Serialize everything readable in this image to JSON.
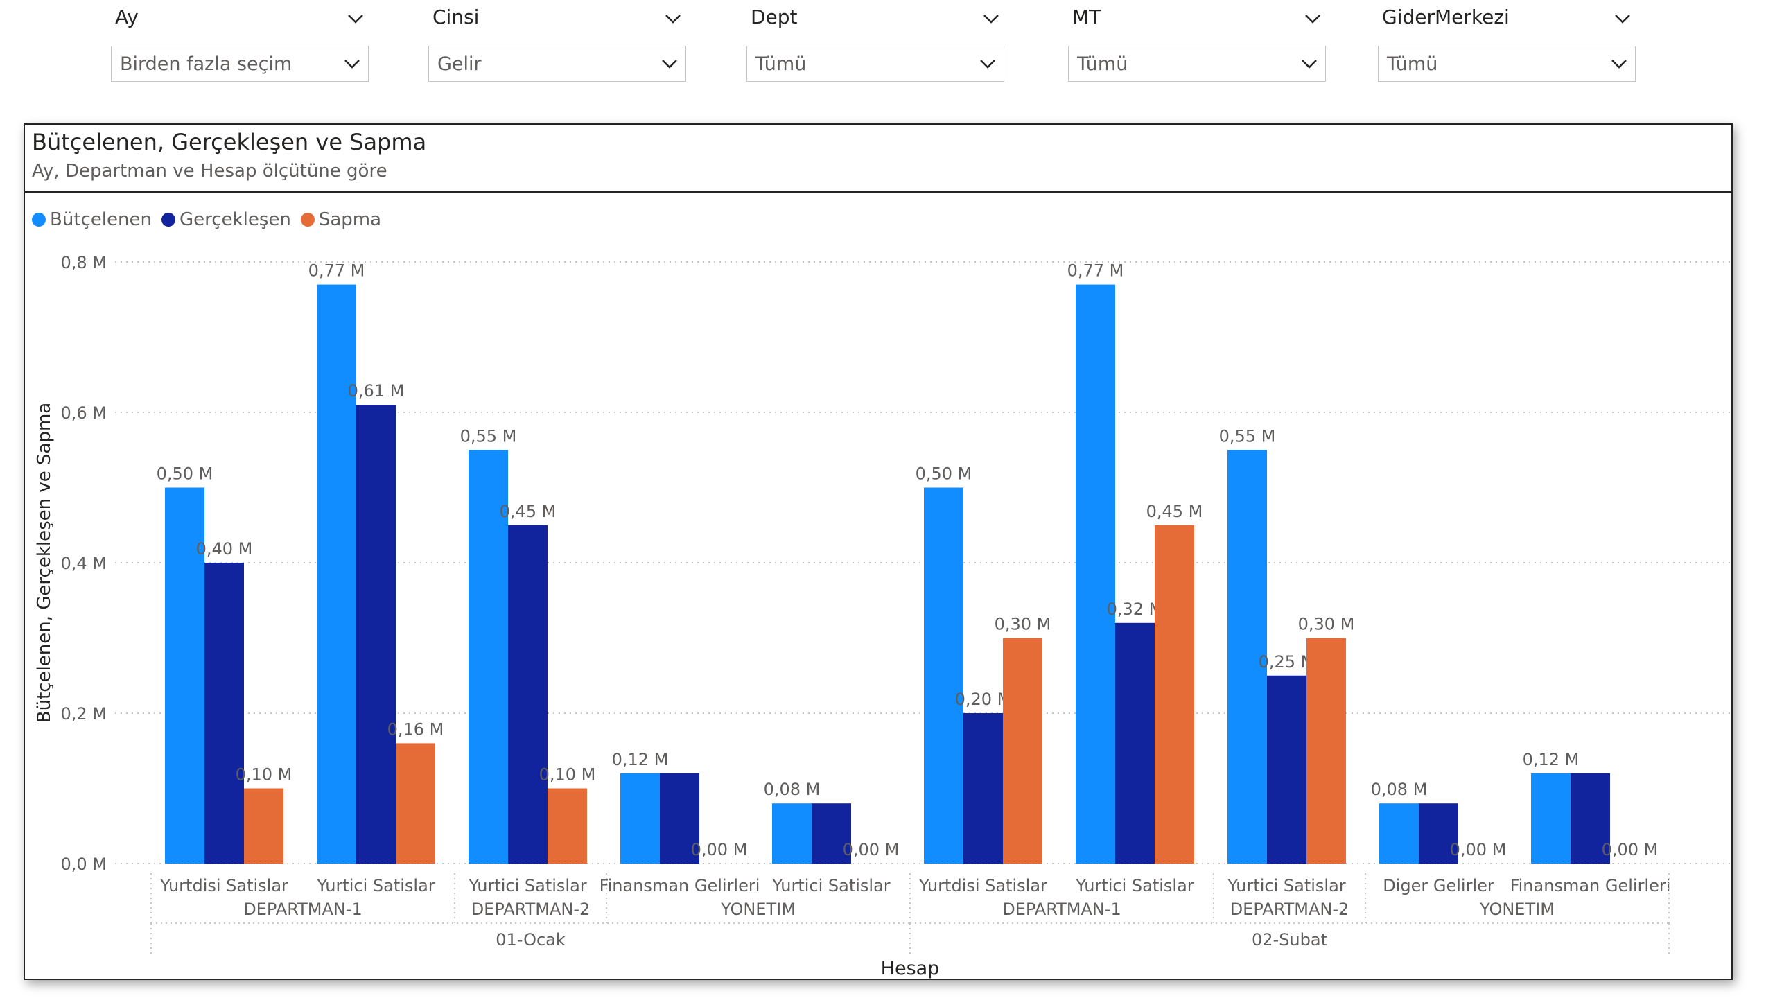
{
  "slicers": [
    {
      "title": "Ay",
      "value": "Birden fazla seçim"
    },
    {
      "title": "Cinsi",
      "value": "Gelir"
    },
    {
      "title": "Dept",
      "value": "Tümü"
    },
    {
      "title": "MT",
      "value": "Tümü"
    },
    {
      "title": "GiderMerkezi",
      "value": "Tümü"
    }
  ],
  "visual": {
    "title": "Bütçelenen, Gerçekleşen ve Sapma",
    "subtitle": "Ay, Departman ve Hesap ölçütüne göre"
  },
  "colors": {
    "Bütçelenen": "#118DFF",
    "Gerçekleşen": "#12239E",
    "Sapma": "#E66C37",
    "grid": "#c8c6c4",
    "axis_text": "#605e5c"
  },
  "chart_data": {
    "type": "bar",
    "title": "Bütçelenen, Gerçekleşen ve Sapma",
    "subtitle": "Ay, Departman ve Hesap ölçütüne göre",
    "xlabel": "Hesap",
    "ylabel": "Bütçelenen, Gerçekleşen ve Sapma",
    "ylim": [
      0,
      0.8
    ],
    "yticks": [
      0,
      0.2,
      0.4,
      0.6,
      0.8
    ],
    "ytick_labels": [
      "0,0 M",
      "0,2 M",
      "0,4 M",
      "0,6 M",
      "0,8 M"
    ],
    "grid": true,
    "legend_position": "top-left",
    "legend": [
      "Bütçelenen",
      "Gerçekleşen",
      "Sapma"
    ],
    "months": [
      {
        "label": "01-Ocak",
        "departments": [
          {
            "label": "DEPARTMAN-1",
            "accounts": [
              {
                "label": "Yurtdisi Satislar",
                "values": [
                  0.5,
                  0.4,
                  0.1
                ],
                "value_labels": [
                  "0,50 M",
                  "0,40 M",
                  "0,10 M"
                ]
              },
              {
                "label": "Yurtici Satislar",
                "values": [
                  0.77,
                  0.61,
                  0.16
                ],
                "value_labels": [
                  "0,77 M",
                  "0,61 M",
                  "0,16 M"
                ]
              }
            ]
          },
          {
            "label": "DEPARTMAN-2",
            "accounts": [
              {
                "label": "Yurtici Satislar",
                "values": [
                  0.55,
                  0.45,
                  0.1
                ],
                "value_labels": [
                  "0,55 M",
                  "0,45 M",
                  "0,10 M"
                ]
              }
            ]
          },
          {
            "label": "YONETIM",
            "accounts": [
              {
                "label": "Finansman Gelirleri",
                "values": [
                  0.12,
                  0.12,
                  0.0
                ],
                "value_labels": [
                  "0,12 M",
                  "",
                  "0,00 M"
                ]
              },
              {
                "label": "Yurtici Satislar",
                "values": [
                  0.08,
                  0.08,
                  0.0
                ],
                "value_labels": [
                  "0,08 M",
                  "",
                  "0,00 M"
                ]
              }
            ]
          }
        ]
      },
      {
        "label": "02-Subat",
        "departments": [
          {
            "label": "DEPARTMAN-1",
            "accounts": [
              {
                "label": "Yurtdisi Satislar",
                "values": [
                  0.5,
                  0.2,
                  0.3
                ],
                "value_labels": [
                  "0,50 M",
                  "0,20 M",
                  "0,30 M"
                ]
              },
              {
                "label": "Yurtici Satislar",
                "values": [
                  0.77,
                  0.32,
                  0.45
                ],
                "value_labels": [
                  "0,77 M",
                  "0,32 M",
                  "0,45 M"
                ]
              }
            ]
          },
          {
            "label": "DEPARTMAN-2",
            "accounts": [
              {
                "label": "Yurtici Satislar",
                "values": [
                  0.55,
                  0.25,
                  0.3
                ],
                "value_labels": [
                  "0,55 M",
                  "0,25 M",
                  "0,30 M"
                ]
              }
            ]
          },
          {
            "label": "YONETIM",
            "accounts": [
              {
                "label": "Diger Gelirler",
                "values": [
                  0.08,
                  0.08,
                  0.0
                ],
                "value_labels": [
                  "0,08 M",
                  "",
                  "0,00 M"
                ]
              },
              {
                "label": "Finansman Gelirleri",
                "values": [
                  0.12,
                  0.12,
                  0.0
                ],
                "value_labels": [
                  "0,12 M",
                  "",
                  "0,00 M"
                ]
              }
            ]
          }
        ]
      }
    ]
  }
}
